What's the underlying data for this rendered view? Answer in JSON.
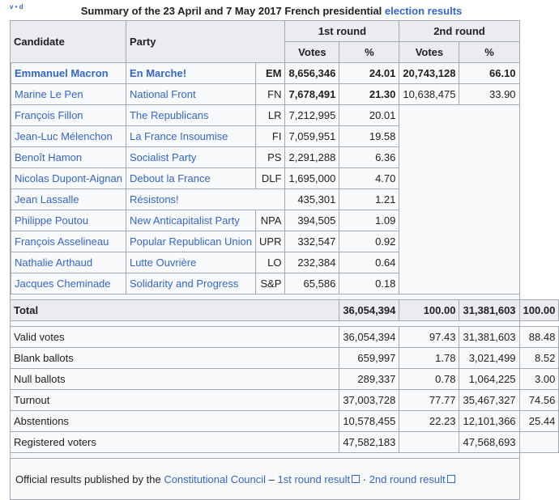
{
  "vde": "v • d",
  "caption_prefix": "Summary of the 23 April and 7 May 2017 French presidential ",
  "caption_link": "election results",
  "headers": {
    "candidate": "Candidate",
    "party": "Party",
    "round1": "1st round",
    "round2": "2nd round",
    "votes": "Votes",
    "pct": "%"
  },
  "candidates": [
    {
      "name": "Emmanuel Macron",
      "party": "En Marche!",
      "abbr": "EM",
      "v1": "8,656,346",
      "p1": "24.01",
      "v2": "20,743,128",
      "p2": "66.10",
      "color": "#f7d84b",
      "bold": true
    },
    {
      "name": "Marine Le Pen",
      "party": "National Front",
      "abbr": "FN",
      "v1": "7,678,491",
      "p1": "21.30",
      "v2": "10,638,475",
      "p2": "33.90",
      "color": "#0c2e6e",
      "bold": false
    },
    {
      "name": "François Fillon",
      "party": "The Republicans",
      "abbr": "LR",
      "v1": "7,212,995",
      "p1": "20.01",
      "color": "#1f62d3"
    },
    {
      "name": "Jean-Luc Mélenchon",
      "party": "La France Insoumise",
      "abbr": "FI",
      "v1": "7,059,951",
      "p1": "19.58",
      "color": "#c8473a"
    },
    {
      "name": "Benoît Hamon",
      "party": "Socialist Party",
      "abbr": "PS",
      "v1": "2,291,288",
      "p1": "6.36",
      "color": "#e0703b"
    },
    {
      "name": "Nicolas Dupont-Aignan",
      "party": "Debout la France",
      "abbr": "DLF",
      "v1": "1,695,000",
      "p1": "4.70",
      "color": "#8a45c2"
    },
    {
      "name": "Jean Lassalle",
      "party": "Résistons!",
      "abbr": "",
      "v1": "435,301",
      "p1": "1.21",
      "color": "#b8c4f3"
    },
    {
      "name": "Philippe Poutou",
      "party": "New Anticapitalist Party",
      "abbr": "NPA",
      "v1": "394,505",
      "p1": "1.09",
      "color": "#b80f2f"
    },
    {
      "name": "François Asselineau",
      "party": "Popular Republican Union",
      "abbr": "UPR",
      "v1": "332,547",
      "p1": "0.92",
      "color": "#137a80"
    },
    {
      "name": "Nathalie Arthaud",
      "party": "Lutte Ouvrière",
      "abbr": "LO",
      "v1": "232,384",
      "p1": "0.64",
      "color": "#d92a45"
    },
    {
      "name": "Jacques Cheminade",
      "party": "Solidarity and Progress",
      "abbr": "S&P",
      "v1": "65,586",
      "p1": "0.18",
      "color": "#7f7f7f"
    }
  ],
  "total": {
    "label": "Total",
    "v1": "36,054,394",
    "p1": "100.00",
    "v2": "31,381,603",
    "p2": "100.00"
  },
  "stats": [
    {
      "label": "Valid votes",
      "v1": "36,054,394",
      "p1": "97.43",
      "v2": "31,381,603",
      "p2": "88.48"
    },
    {
      "label": "Blank ballots",
      "v1": "659,997",
      "p1": "1.78",
      "v2": "3,021,499",
      "p2": "8.52"
    },
    {
      "label": "Null ballots",
      "v1": "289,337",
      "p1": "0.78",
      "v2": "1,064,225",
      "p2": "3.00"
    },
    {
      "label": "Turnout",
      "v1": "37,003,728",
      "p1": "77.77",
      "v2": "35,467,327",
      "p2": "74.56"
    },
    {
      "label": "Abstentions",
      "v1": "10,578,455",
      "p1": "22.23",
      "v2": "12,101,366",
      "p2": "25.44"
    },
    {
      "label": "Registered voters",
      "v1": "47,582,183",
      "p1": "",
      "v2": "47,568,693",
      "p2": ""
    }
  ],
  "footer": {
    "prefix": "Official results published by the ",
    "council": "Constitutional Council",
    "dash": " – ",
    "r1": "1st round result",
    "dot": " · ",
    "r2": "2nd round result"
  }
}
